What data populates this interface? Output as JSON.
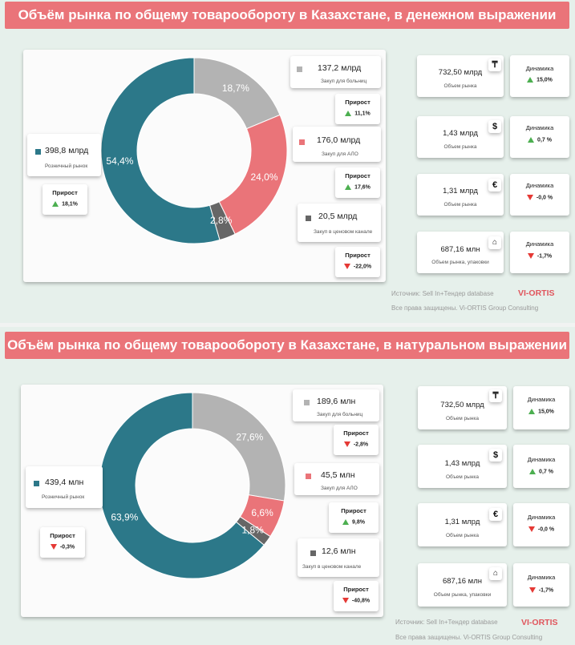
{
  "colors": {
    "banner": "#ea7479",
    "retail": "#2c7889",
    "hospitals": "#b3b3b3",
    "alo": "#ea7479",
    "price_channel": "#666666",
    "up": "#4caf50",
    "down": "#e53935",
    "logo": "#e0555c"
  },
  "panels": [
    {
      "title": "Объём рынка по общему товарообороту в Казахстане, в денежном выражении",
      "retail": {
        "value": "398,8 млрд",
        "label": "Розничный рынок",
        "growth_title": "Прирост",
        "growth": "18,1%",
        "growth_dir": "up"
      },
      "hospitals": {
        "value": "137,2 млрд",
        "label": "Закуп для больниц",
        "growth_title": "Прирост",
        "growth": "11,1%",
        "growth_dir": "up"
      },
      "alo": {
        "value": "176,0 млрд",
        "label": "Закуп для АЛО",
        "growth_title": "Прирост",
        "growth": "17,6%",
        "growth_dir": "up"
      },
      "price_channel": {
        "value": "20,5 млрд",
        "label": "Закуп в ценовом канале",
        "growth_title": "Прирост",
        "growth": "-22,0%",
        "growth_dir": "down"
      },
      "kpis": [
        {
          "value": "732,50 млрд",
          "label": "Объем рынка",
          "currency_icon": "tenge-icon",
          "symbol": "₸",
          "dyn_title": "Динамика",
          "dyn": "15,0%",
          "dir": "up"
        },
        {
          "value": "1,43 млрд",
          "label": "Объем рынка",
          "currency_icon": "dollar-icon",
          "symbol": "$",
          "dyn_title": "Динамика",
          "dyn": "0,7 %",
          "dir": "up"
        },
        {
          "value": "1,31 млрд",
          "label": "Объем рынка",
          "currency_icon": "euro-icon",
          "symbol": "€",
          "dyn_title": "Динамика",
          "dyn": "-0,0 %",
          "dir": "down"
        },
        {
          "value": "687,16 млн",
          "label": "Объем рынка, упаковки",
          "currency_icon": "package-icon",
          "symbol": "⌂",
          "dyn_title": "Динамика",
          "dyn": "-1,7%",
          "dir": "down"
        }
      ],
      "source": "Источник: Sell In+Тендер database",
      "rights": "Все права защищены. Vi-ORTIS Group Consulting",
      "logo": "VI-ORTIS"
    },
    {
      "title": "Объём рынка по общему товарообороту в Казахстане, в натуральном выражении",
      "retail": {
        "value": "439,4 млн",
        "label": "Розничный рынок",
        "growth_title": "Прирост",
        "growth": "-0,3%",
        "growth_dir": "down"
      },
      "hospitals": {
        "value": "189,6 млн",
        "label": "Закуп для больниц",
        "growth_title": "Прирост",
        "growth": "-2,8%",
        "growth_dir": "down"
      },
      "alo": {
        "value": "45,5 млн",
        "label": "Закуп для АЛО",
        "growth_title": "Прирост",
        "growth": "9,8%",
        "growth_dir": "up"
      },
      "price_channel": {
        "value": "12,6 млн",
        "label": "Закуп в ценовом канале",
        "growth_title": "Прирост",
        "growth": "-40,8%",
        "growth_dir": "down"
      },
      "kpis": [
        {
          "value": "732,50 млрд",
          "label": "Объем рынка",
          "currency_icon": "tenge-icon",
          "symbol": "₸",
          "dyn_title": "Динамика",
          "dyn": "15,0%",
          "dir": "up"
        },
        {
          "value": "1,43 млрд",
          "label": "Объем рынка",
          "currency_icon": "dollar-icon",
          "symbol": "$",
          "dyn_title": "Динамика",
          "dyn": "0,7 %",
          "dir": "up"
        },
        {
          "value": "1,31 млрд",
          "label": "Объем рынка",
          "currency_icon": "euro-icon",
          "symbol": "€",
          "dyn_title": "Динамика",
          "dyn": "-0,0 %",
          "dir": "down"
        },
        {
          "value": "687,16 млн",
          "label": "Объем рынка, упаковки",
          "currency_icon": "package-icon",
          "symbol": "⌂",
          "dyn_title": "Динамика",
          "dyn": "-1,7%",
          "dir": "down"
        }
      ],
      "source": "Источник: Sell In+Тендер database",
      "rights": "Все права защищены. Vi-ORTIS Group Consulting",
      "logo": "VI-ORTIS"
    }
  ],
  "chart_data": [
    {
      "type": "pie",
      "categories": [
        "Розничный рынок",
        "Закуп для больниц",
        "Закуп для АЛО",
        "Закуп в ценовом канале"
      ],
      "values": [
        54.4,
        18.7,
        24.0,
        2.8
      ],
      "labels": [
        "54,4%",
        "18,7%",
        "24,0%",
        "2,8%"
      ],
      "colors": [
        "#2c7889",
        "#b3b3b3",
        "#ea7479",
        "#666666"
      ]
    },
    {
      "type": "pie",
      "categories": [
        "Розничный рынок",
        "Закуп для больниц",
        "Закуп для АЛО",
        "Закуп в ценовом канале"
      ],
      "values": [
        63.9,
        27.6,
        6.6,
        1.8
      ],
      "labels": [
        "63,9%",
        "27,6%",
        "6,6%",
        "1,8%"
      ],
      "colors": [
        "#2c7889",
        "#b3b3b3",
        "#ea7479",
        "#666666"
      ]
    }
  ]
}
